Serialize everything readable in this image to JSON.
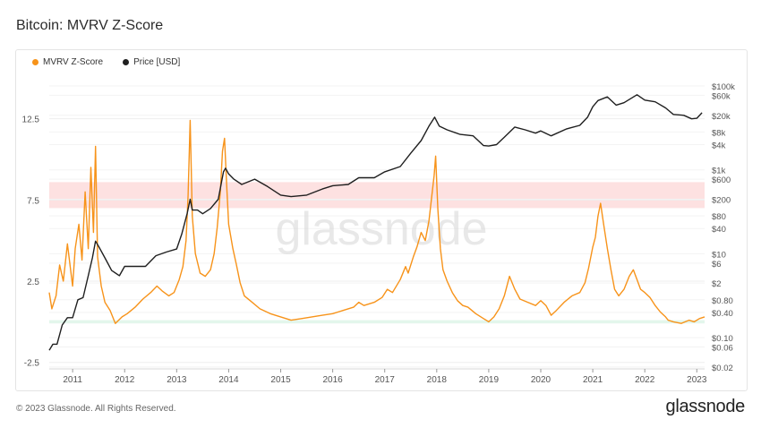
{
  "title": "Bitcoin: MVRV Z-Score",
  "footer": "© 2023 Glassnode. All Rights Reserved.",
  "logo": "glassnode",
  "watermark": "glassnode",
  "colors": {
    "mvrv": "#f7931a",
    "price": "#1f1f1f",
    "high_band": "#fde1e1",
    "low_band": "#e3f6ec",
    "grid": "#eeeeee"
  },
  "chart_data": {
    "type": "line",
    "title": "Bitcoin: MVRV Z-Score",
    "legend": [
      "MVRV Z-Score",
      "Price [USD]"
    ],
    "legend_placement": "top-left",
    "x_ticks": [
      "2011",
      "2012",
      "2013",
      "2014",
      "2015",
      "2016",
      "2017",
      "2018",
      "2019",
      "2020",
      "2021",
      "2022",
      "2023"
    ],
    "x_range": [
      2010.55,
      2023.15
    ],
    "left_axis": {
      "ticks": [
        "12.5",
        "7.5",
        "2.5",
        "-2.5"
      ],
      "tick_values": [
        12.5,
        7.5,
        2.5,
        -2.5
      ],
      "range": [
        -2.9,
        15.4
      ]
    },
    "right_axis": {
      "scale": "log",
      "ticks": [
        "$100k",
        "$60k",
        "$20k",
        "$8k",
        "$4k",
        "$1k",
        "$600",
        "$200",
        "$80",
        "$40",
        "$10",
        "$6",
        "$2",
        "$0.80",
        "$0.40",
        "$0.10",
        "$0.06",
        "$0.02"
      ],
      "tick_values": [
        100000,
        60000,
        20000,
        8000,
        4000,
        1000,
        600,
        200,
        80,
        40,
        10,
        6,
        2,
        0.8,
        0.4,
        0.1,
        0.06,
        0.02
      ],
      "range": [
        0.018,
        220000
      ]
    },
    "bands": [
      {
        "name": "high",
        "y_range": [
          7.0,
          8.6
        ]
      },
      {
        "name": "low",
        "y_range": [
          -0.1,
          0.1
        ]
      }
    ],
    "series": [
      {
        "name": "MVRV Z-Score",
        "axis": "left",
        "color": "#f7931a",
        "x": [
          2010.55,
          2010.6,
          2010.68,
          2010.75,
          2010.82,
          2010.9,
          2011.0,
          2011.05,
          2011.12,
          2011.18,
          2011.24,
          2011.3,
          2011.35,
          2011.4,
          2011.44,
          2011.48,
          2011.55,
          2011.62,
          2011.72,
          2011.82,
          2011.95,
          2012.05,
          2012.2,
          2012.35,
          2012.5,
          2012.62,
          2012.72,
          2012.85,
          2012.95,
          2013.05,
          2013.12,
          2013.18,
          2013.22,
          2013.26,
          2013.3,
          2013.36,
          2013.45,
          2013.55,
          2013.65,
          2013.72,
          2013.78,
          2013.84,
          2013.88,
          2013.92,
          2013.96,
          2014.0,
          2014.08,
          2014.15,
          2014.22,
          2014.3,
          2014.45,
          2014.6,
          2014.8,
          2015.0,
          2015.2,
          2015.4,
          2015.6,
          2015.8,
          2016.0,
          2016.2,
          2016.4,
          2016.5,
          2016.6,
          2016.8,
          2016.95,
          2017.05,
          2017.15,
          2017.3,
          2017.4,
          2017.45,
          2017.55,
          2017.62,
          2017.7,
          2017.78,
          2017.85,
          2017.9,
          2017.95,
          2017.98,
          2018.02,
          2018.07,
          2018.12,
          2018.2,
          2018.3,
          2018.4,
          2018.5,
          2018.6,
          2018.75,
          2018.9,
          2019.0,
          2019.1,
          2019.2,
          2019.3,
          2019.4,
          2019.5,
          2019.6,
          2019.75,
          2019.9,
          2020.0,
          2020.1,
          2020.2,
          2020.3,
          2020.45,
          2020.6,
          2020.75,
          2020.85,
          2020.92,
          2021.0,
          2021.05,
          2021.1,
          2021.15,
          2021.2,
          2021.28,
          2021.35,
          2021.42,
          2021.5,
          2021.6,
          2021.7,
          2021.78,
          2021.85,
          2021.92,
          2022.0,
          2022.1,
          2022.2,
          2022.3,
          2022.4,
          2022.45,
          2022.55,
          2022.7,
          2022.85,
          2022.95,
          2023.05,
          2023.15
        ],
        "y": [
          1.8,
          0.8,
          1.6,
          3.5,
          2.5,
          4.8,
          2.2,
          4.5,
          6.0,
          3.8,
          8.0,
          4.5,
          9.5,
          5.5,
          10.8,
          4.0,
          2.2,
          1.2,
          0.7,
          -0.1,
          0.3,
          0.5,
          0.9,
          1.4,
          1.8,
          2.2,
          1.9,
          1.6,
          1.8,
          2.6,
          3.4,
          5.0,
          7.8,
          12.4,
          6.5,
          4.2,
          3.0,
          2.8,
          3.2,
          4.2,
          5.8,
          8.0,
          10.5,
          11.3,
          8.5,
          6.0,
          4.5,
          3.5,
          2.4,
          1.6,
          1.2,
          0.8,
          0.5,
          0.3,
          0.1,
          0.2,
          0.3,
          0.4,
          0.5,
          0.7,
          0.9,
          1.2,
          1.0,
          1.2,
          1.5,
          2.0,
          1.8,
          2.6,
          3.4,
          3.0,
          4.0,
          4.6,
          5.5,
          5.0,
          6.2,
          7.6,
          9.0,
          10.2,
          7.0,
          4.5,
          3.2,
          2.5,
          1.8,
          1.3,
          1.0,
          0.9,
          0.5,
          0.2,
          0.0,
          0.3,
          0.8,
          1.6,
          2.8,
          2.0,
          1.4,
          1.2,
          1.0,
          1.3,
          1.0,
          0.4,
          0.7,
          1.2,
          1.6,
          1.8,
          2.4,
          3.3,
          4.6,
          5.2,
          6.5,
          7.3,
          6.2,
          4.5,
          3.2,
          2.0,
          1.6,
          2.0,
          2.8,
          3.2,
          2.6,
          2.0,
          1.8,
          1.5,
          1.0,
          0.6,
          0.3,
          0.1,
          0.0,
          -0.1,
          0.1,
          0.0,
          0.2,
          0.3
        ]
      },
      {
        "name": "Price [USD]",
        "axis": "right",
        "color": "#1f1f1f",
        "x": [
          2010.55,
          2010.62,
          2010.7,
          2010.8,
          2010.9,
          2011.0,
          2011.1,
          2011.2,
          2011.3,
          2011.38,
          2011.44,
          2011.5,
          2011.62,
          2011.75,
          2011.9,
          2012.0,
          2012.2,
          2012.4,
          2012.6,
          2012.8,
          2013.0,
          2013.1,
          2013.2,
          2013.26,
          2013.3,
          2013.4,
          2013.5,
          2013.65,
          2013.8,
          2013.9,
          2013.94,
          2014.0,
          2014.1,
          2014.25,
          2014.5,
          2014.75,
          2015.0,
          2015.2,
          2015.5,
          2015.8,
          2016.0,
          2016.3,
          2016.5,
          2016.8,
          2017.0,
          2017.3,
          2017.5,
          2017.7,
          2017.85,
          2017.96,
          2018.05,
          2018.2,
          2018.45,
          2018.7,
          2018.9,
          2019.0,
          2019.15,
          2019.3,
          2019.5,
          2019.7,
          2019.9,
          2020.0,
          2020.2,
          2020.5,
          2020.75,
          2020.9,
          2021.0,
          2021.1,
          2021.28,
          2021.45,
          2021.6,
          2021.85,
          2022.0,
          2022.2,
          2022.4,
          2022.55,
          2022.75,
          2022.9,
          2023.0,
          2023.1
        ],
        "y": [
          0.05,
          0.07,
          0.07,
          0.2,
          0.3,
          0.3,
          0.8,
          0.9,
          3,
          8,
          20,
          15,
          8,
          4,
          3,
          5,
          5,
          5,
          9,
          11,
          13,
          30,
          90,
          200,
          110,
          110,
          90,
          120,
          200,
          900,
          1100,
          800,
          600,
          450,
          600,
          400,
          250,
          230,
          250,
          350,
          420,
          450,
          650,
          650,
          900,
          1200,
          2500,
          5000,
          11000,
          18000,
          11000,
          9000,
          7000,
          6500,
          3800,
          3700,
          4000,
          6000,
          10500,
          9000,
          7500,
          8500,
          6500,
          9500,
          11500,
          18000,
          32000,
          45000,
          55000,
          35000,
          40000,
          62000,
          46000,
          42000,
          30000,
          21000,
          20000,
          16500,
          17000,
          23000
        ]
      }
    ]
  }
}
